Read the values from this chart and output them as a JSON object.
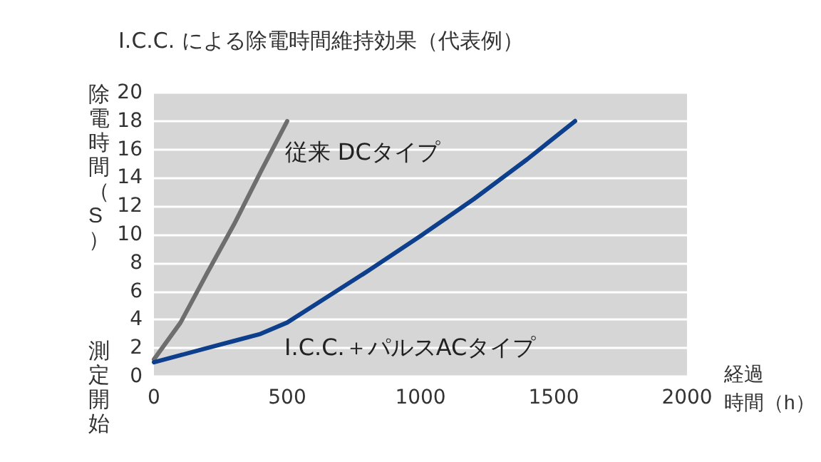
{
  "chart_data": {
    "type": "line",
    "title": "I.C.C. による除電時間維持効果（代表例）",
    "ylabel": "除電時間（S）",
    "xlabel": "経過時間（h）",
    "annotations": [
      "測定開始"
    ],
    "xlim": [
      0,
      2000
    ],
    "xticks": [
      0,
      500,
      1000,
      1500,
      2000
    ],
    "ylim": [
      0,
      20
    ],
    "yticks": [
      0,
      2,
      4,
      6,
      8,
      10,
      12,
      14,
      16,
      18,
      20
    ],
    "grid": "y",
    "legend": false,
    "marker": "none",
    "line_style": "solid",
    "series": [
      {
        "name": "従来 DCタイプ",
        "color": "#6e6e6e",
        "x": [
          0,
          100,
          200,
          300,
          400,
          500
        ],
        "values": [
          1.2,
          3.8,
          7.3,
          10.7,
          14.4,
          18
        ]
      },
      {
        "name": "I.C.C.＋パルスACタイプ",
        "color": "#0d3f8c",
        "x": [
          0,
          100,
          200,
          300,
          400,
          500,
          600,
          800,
          1000,
          1200,
          1400,
          1580
        ],
        "values": [
          1,
          1.5,
          2,
          2.5,
          3,
          3.8,
          5,
          7.4,
          9.9,
          12.5,
          15.3,
          18
        ]
      }
    ]
  }
}
